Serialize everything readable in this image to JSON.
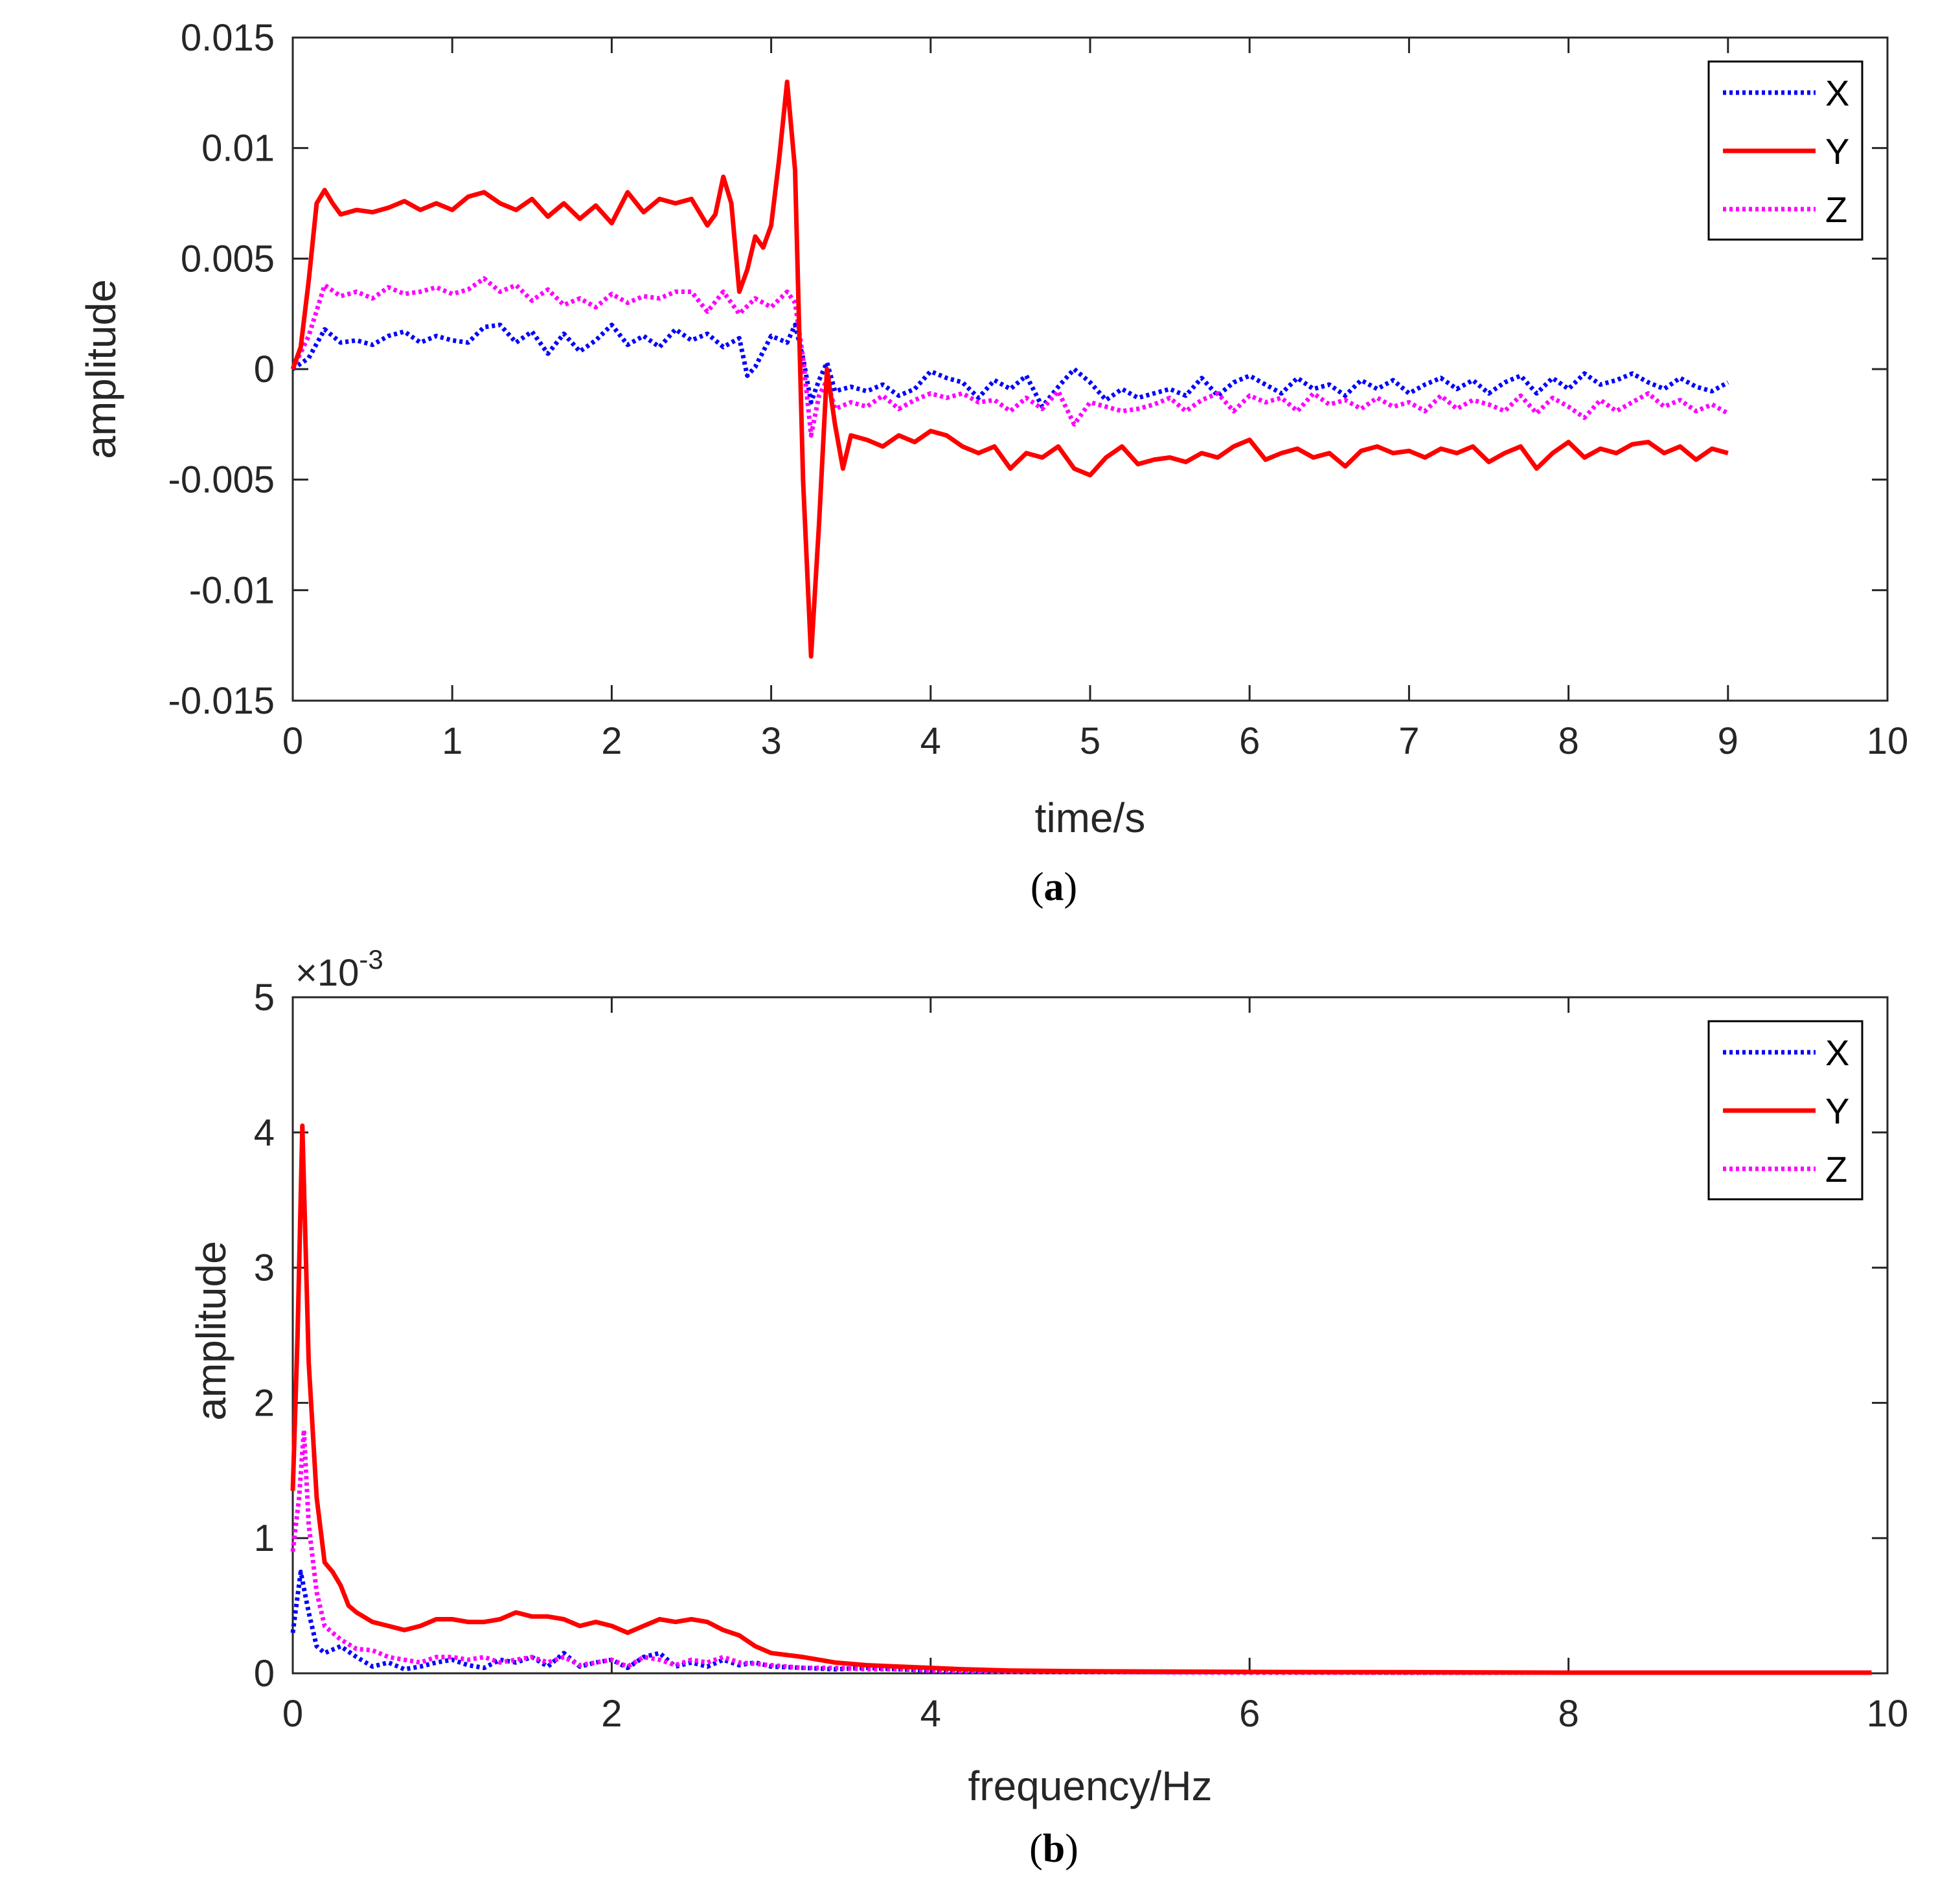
{
  "colors": {
    "X": "#0000ff",
    "Y": "#ff0000",
    "Z": "#ff00ff",
    "axis": "#262626"
  },
  "chart_data": [
    {
      "id": "a",
      "type": "line",
      "caption_letter": "a",
      "xlabel": "time/s",
      "ylabel": "amplitude",
      "xlim": [
        0,
        10
      ],
      "ylim": [
        -0.015,
        0.015
      ],
      "xticks": [
        0,
        1,
        2,
        3,
        4,
        5,
        6,
        7,
        8,
        9,
        10
      ],
      "xtick_labels": [
        "0",
        "1",
        "2",
        "3",
        "4",
        "5",
        "6",
        "7",
        "8",
        "9",
        "10"
      ],
      "yticks": [
        -0.015,
        -0.01,
        -0.005,
        0,
        0.005,
        0.01,
        0.015
      ],
      "ytick_labels": [
        "-0.015",
        "-0.01",
        "-0.005",
        "0",
        "0.005",
        "0.01",
        "0.015"
      ],
      "legend": [
        "X",
        "Y",
        "Z"
      ],
      "legend_position": "top-right",
      "series": [
        {
          "name": "X",
          "style": "dotted",
          "color": "#0000ff",
          "x": [
            0,
            0.1,
            0.2,
            0.3,
            0.4,
            0.5,
            0.6,
            0.7,
            0.8,
            0.9,
            1.0,
            1.1,
            1.2,
            1.3,
            1.4,
            1.5,
            1.6,
            1.7,
            1.8,
            1.9,
            2.0,
            2.1,
            2.2,
            2.3,
            2.4,
            2.5,
            2.6,
            2.7,
            2.8,
            2.85,
            2.9,
            3.0,
            3.1,
            3.15,
            3.2,
            3.25,
            3.3,
            3.35,
            3.4,
            3.5,
            3.6,
            3.7,
            3.8,
            3.9,
            4.0,
            4.1,
            4.2,
            4.3,
            4.4,
            4.5,
            4.6,
            4.7,
            4.8,
            4.9,
            5.0,
            5.1,
            5.2,
            5.3,
            5.4,
            5.5,
            5.6,
            5.7,
            5.8,
            5.9,
            6.0,
            6.1,
            6.2,
            6.3,
            6.4,
            6.5,
            6.6,
            6.7,
            6.8,
            6.9,
            7.0,
            7.1,
            7.2,
            7.3,
            7.4,
            7.5,
            7.6,
            7.7,
            7.8,
            7.9,
            8.0,
            8.1,
            8.2,
            8.3,
            8.4,
            8.5,
            8.6,
            8.7,
            8.8,
            8.9,
            9.0
          ],
          "y": [
            0,
            0.0005,
            0.0018,
            0.0012,
            0.0013,
            0.0011,
            0.0015,
            0.0017,
            0.0012,
            0.0015,
            0.0013,
            0.0012,
            0.0019,
            0.002,
            0.0012,
            0.0017,
            0.0007,
            0.0016,
            0.0008,
            0.0013,
            0.002,
            0.0011,
            0.0015,
            0.001,
            0.0018,
            0.0013,
            0.0016,
            0.001,
            0.0014,
            -0.0003,
            0.0001,
            0.0015,
            0.0012,
            0.002,
            0.0005,
            -0.0015,
            -0.0005,
            0.0003,
            -0.001,
            -0.0008,
            -0.001,
            -0.0007,
            -0.0012,
            -0.0009,
            -0.0001,
            -0.0004,
            -0.0006,
            -0.0013,
            -0.0005,
            -0.0009,
            -0.0003,
            -0.0017,
            -0.0008,
            0,
            -0.0006,
            -0.0014,
            -0.0009,
            -0.0013,
            -0.0011,
            -0.0009,
            -0.0012,
            -0.0004,
            -0.0012,
            -0.0006,
            -0.0003,
            -0.0007,
            -0.0011,
            -0.0004,
            -0.0009,
            -0.0007,
            -0.0012,
            -0.0005,
            -0.0009,
            -0.0005,
            -0.0011,
            -0.0007,
            -0.0004,
            -0.0009,
            -0.0005,
            -0.0011,
            -0.0006,
            -0.0003,
            -0.0011,
            -0.0004,
            -0.0009,
            -0.0002,
            -0.0007,
            -0.0005,
            -0.0002,
            -0.0006,
            -0.0009,
            -0.0004,
            -0.0008,
            -0.001,
            -0.0006
          ]
        },
        {
          "name": "Y",
          "style": "solid",
          "color": "#ff0000",
          "x": [
            0,
            0.05,
            0.1,
            0.15,
            0.2,
            0.25,
            0.3,
            0.4,
            0.5,
            0.6,
            0.7,
            0.8,
            0.9,
            1.0,
            1.1,
            1.2,
            1.3,
            1.4,
            1.5,
            1.6,
            1.7,
            1.8,
            1.9,
            2.0,
            2.1,
            2.2,
            2.3,
            2.4,
            2.5,
            2.6,
            2.65,
            2.7,
            2.75,
            2.8,
            2.85,
            2.9,
            2.95,
            3.0,
            3.05,
            3.1,
            3.15,
            3.2,
            3.25,
            3.3,
            3.35,
            3.4,
            3.45,
            3.5,
            3.6,
            3.7,
            3.8,
            3.9,
            4.0,
            4.1,
            4.2,
            4.3,
            4.4,
            4.5,
            4.6,
            4.7,
            4.8,
            4.9,
            5.0,
            5.1,
            5.2,
            5.3,
            5.4,
            5.5,
            5.6,
            5.7,
            5.8,
            5.9,
            6.0,
            6.1,
            6.2,
            6.3,
            6.4,
            6.5,
            6.6,
            6.7,
            6.8,
            6.9,
            7.0,
            7.1,
            7.2,
            7.3,
            7.4,
            7.5,
            7.6,
            7.7,
            7.8,
            7.9,
            8.0,
            8.1,
            8.2,
            8.3,
            8.4,
            8.5,
            8.6,
            8.7,
            8.8,
            8.9,
            9.0
          ],
          "y": [
            0,
            0.001,
            0.004,
            0.0075,
            0.0081,
            0.0075,
            0.007,
            0.0072,
            0.0071,
            0.0073,
            0.0076,
            0.0072,
            0.0075,
            0.0072,
            0.0078,
            0.008,
            0.0075,
            0.0072,
            0.0077,
            0.0069,
            0.0075,
            0.0068,
            0.0074,
            0.0066,
            0.008,
            0.0071,
            0.0077,
            0.0075,
            0.0077,
            0.0065,
            0.007,
            0.0087,
            0.0075,
            0.0035,
            0.0045,
            0.006,
            0.0055,
            0.0065,
            0.0095,
            0.013,
            0.009,
            -0.005,
            -0.013,
            -0.007,
            0,
            -0.0025,
            -0.0045,
            -0.003,
            -0.0032,
            -0.0035,
            -0.003,
            -0.0033,
            -0.0028,
            -0.003,
            -0.0035,
            -0.0038,
            -0.0035,
            -0.0045,
            -0.0038,
            -0.004,
            -0.0035,
            -0.0045,
            -0.0048,
            -0.004,
            -0.0035,
            -0.0043,
            -0.0041,
            -0.004,
            -0.0042,
            -0.0038,
            -0.004,
            -0.0035,
            -0.0032,
            -0.0041,
            -0.0038,
            -0.0036,
            -0.004,
            -0.0038,
            -0.0044,
            -0.0037,
            -0.0035,
            -0.0038,
            -0.0037,
            -0.004,
            -0.0036,
            -0.0038,
            -0.0035,
            -0.0042,
            -0.0038,
            -0.0035,
            -0.0045,
            -0.0038,
            -0.0033,
            -0.004,
            -0.0036,
            -0.0038,
            -0.0034,
            -0.0033,
            -0.0038,
            -0.0035,
            -0.0041,
            -0.0036,
            -0.0038
          ]
        },
        {
          "name": "Z",
          "style": "dotted",
          "color": "#ff00ff",
          "x": [
            0,
            0.1,
            0.2,
            0.3,
            0.4,
            0.5,
            0.6,
            0.7,
            0.8,
            0.9,
            1.0,
            1.1,
            1.2,
            1.3,
            1.4,
            1.5,
            1.6,
            1.7,
            1.8,
            1.9,
            2.0,
            2.1,
            2.2,
            2.3,
            2.4,
            2.5,
            2.6,
            2.7,
            2.8,
            2.9,
            3.0,
            3.1,
            3.15,
            3.2,
            3.25,
            3.3,
            3.35,
            3.4,
            3.5,
            3.6,
            3.7,
            3.8,
            3.9,
            4.0,
            4.1,
            4.2,
            4.3,
            4.4,
            4.5,
            4.6,
            4.7,
            4.8,
            4.9,
            5.0,
            5.1,
            5.2,
            5.3,
            5.4,
            5.5,
            5.6,
            5.7,
            5.8,
            5.9,
            6.0,
            6.1,
            6.2,
            6.3,
            6.4,
            6.5,
            6.6,
            6.7,
            6.8,
            6.9,
            7.0,
            7.1,
            7.2,
            7.3,
            7.4,
            7.5,
            7.6,
            7.7,
            7.8,
            7.9,
            8.0,
            8.1,
            8.2,
            8.3,
            8.4,
            8.5,
            8.6,
            8.7,
            8.8,
            8.9,
            9.0
          ],
          "y": [
            0,
            0.0015,
            0.0038,
            0.0033,
            0.0035,
            0.0032,
            0.0037,
            0.0034,
            0.0035,
            0.0037,
            0.0034,
            0.0036,
            0.0041,
            0.0035,
            0.0038,
            0.0031,
            0.0036,
            0.0029,
            0.0032,
            0.0028,
            0.0034,
            0.003,
            0.0033,
            0.0032,
            0.0035,
            0.0035,
            0.0026,
            0.0035,
            0.0025,
            0.0032,
            0.0028,
            0.0035,
            0.003,
            0.0005,
            -0.003,
            -0.0012,
            -0.0005,
            -0.0018,
            -0.0015,
            -0.0017,
            -0.0012,
            -0.0018,
            -0.0014,
            -0.0011,
            -0.0013,
            -0.0011,
            -0.0015,
            -0.0014,
            -0.0019,
            -0.0013,
            -0.0018,
            -0.001,
            -0.0025,
            -0.0015,
            -0.0017,
            -0.0019,
            -0.0018,
            -0.0016,
            -0.0013,
            -0.0019,
            -0.0014,
            -0.0011,
            -0.0019,
            -0.0012,
            -0.0015,
            -0.0013,
            -0.0019,
            -0.0011,
            -0.0016,
            -0.0014,
            -0.0018,
            -0.0013,
            -0.0017,
            -0.0015,
            -0.0019,
            -0.0012,
            -0.0018,
            -0.0014,
            -0.0016,
            -0.0019,
            -0.0012,
            -0.002,
            -0.0013,
            -0.0017,
            -0.0022,
            -0.0014,
            -0.0019,
            -0.0015,
            -0.0011,
            -0.0017,
            -0.0014,
            -0.0019,
            -0.0016,
            -0.002
          ]
        }
      ]
    },
    {
      "id": "b",
      "type": "line",
      "caption_letter": "b",
      "xlabel": "frequency/Hz",
      "ylabel": "amplitude",
      "exponent_label": "×10",
      "exponent_power": "-3",
      "xlim": [
        0,
        10
      ],
      "ylim": [
        0,
        5
      ],
      "xticks": [
        0,
        2,
        4,
        6,
        8,
        10
      ],
      "xtick_labels": [
        "0",
        "2",
        "4",
        "6",
        "8",
        "10"
      ],
      "yticks": [
        0,
        1,
        2,
        3,
        4,
        5
      ],
      "ytick_labels": [
        "0",
        "1",
        "2",
        "3",
        "4",
        "5"
      ],
      "legend": [
        "X",
        "Y",
        "Z"
      ],
      "legend_position": "top-right",
      "series": [
        {
          "name": "X",
          "style": "dotted",
          "color": "#0000ff",
          "x": [
            0,
            0.05,
            0.1,
            0.15,
            0.2,
            0.3,
            0.4,
            0.5,
            0.6,
            0.7,
            0.8,
            0.9,
            1.0,
            1.1,
            1.2,
            1.3,
            1.4,
            1.5,
            1.6,
            1.7,
            1.8,
            1.9,
            2.0,
            2.1,
            2.2,
            2.3,
            2.4,
            2.5,
            2.6,
            2.7,
            2.8,
            2.9,
            3.0,
            3.2,
            3.4,
            3.6,
            3.8,
            4.0,
            4.5,
            5.0,
            6.0,
            7.0,
            8.0,
            9.0,
            9.9
          ],
          "y": [
            0.3,
            0.75,
            0.45,
            0.2,
            0.15,
            0.2,
            0.12,
            0.05,
            0.08,
            0.03,
            0.05,
            0.08,
            0.1,
            0.06,
            0.04,
            0.1,
            0.08,
            0.12,
            0.05,
            0.15,
            0.05,
            0.08,
            0.1,
            0.04,
            0.12,
            0.15,
            0.05,
            0.08,
            0.05,
            0.1,
            0.06,
            0.08,
            0.05,
            0.04,
            0.03,
            0.04,
            0.03,
            0.02,
            0.01,
            0.01,
            0.01,
            0.005,
            0.005,
            0.005,
            0.005
          ]
        },
        {
          "name": "Y",
          "style": "solid",
          "color": "#ff0000",
          "x": [
            0,
            0.03,
            0.06,
            0.1,
            0.15,
            0.2,
            0.25,
            0.3,
            0.35,
            0.4,
            0.5,
            0.6,
            0.7,
            0.8,
            0.9,
            1.0,
            1.1,
            1.2,
            1.3,
            1.4,
            1.5,
            1.6,
            1.7,
            1.8,
            1.9,
            2.0,
            2.1,
            2.2,
            2.3,
            2.4,
            2.5,
            2.6,
            2.7,
            2.8,
            2.9,
            3.0,
            3.2,
            3.4,
            3.6,
            3.8,
            4.0,
            4.2,
            4.5,
            5.0,
            6.0,
            7.0,
            8.0,
            9.0,
            9.9
          ],
          "y": [
            1.35,
            2.5,
            4.05,
            2.3,
            1.3,
            0.82,
            0.75,
            0.65,
            0.5,
            0.45,
            0.38,
            0.35,
            0.32,
            0.35,
            0.4,
            0.4,
            0.38,
            0.38,
            0.4,
            0.45,
            0.42,
            0.42,
            0.4,
            0.35,
            0.38,
            0.35,
            0.3,
            0.35,
            0.4,
            0.38,
            0.4,
            0.38,
            0.32,
            0.28,
            0.2,
            0.15,
            0.12,
            0.08,
            0.06,
            0.05,
            0.04,
            0.03,
            0.02,
            0.015,
            0.01,
            0.008,
            0.005,
            0.005,
            0.005
          ]
        },
        {
          "name": "Z",
          "style": "dotted",
          "color": "#ff00ff",
          "x": [
            0,
            0.04,
            0.07,
            0.1,
            0.15,
            0.2,
            0.25,
            0.3,
            0.4,
            0.5,
            0.6,
            0.7,
            0.8,
            0.9,
            1.0,
            1.1,
            1.2,
            1.3,
            1.4,
            1.5,
            1.6,
            1.7,
            1.8,
            1.9,
            2.0,
            2.1,
            2.2,
            2.3,
            2.4,
            2.5,
            2.6,
            2.7,
            2.8,
            3.0,
            3.2,
            3.4,
            3.6,
            3.8,
            4.0,
            4.5,
            5.0,
            6.0,
            7.0,
            8.0,
            9.0,
            9.9
          ],
          "y": [
            0.9,
            1.3,
            1.8,
            1.1,
            0.6,
            0.35,
            0.3,
            0.25,
            0.18,
            0.17,
            0.12,
            0.1,
            0.08,
            0.12,
            0.12,
            0.1,
            0.12,
            0.08,
            0.1,
            0.12,
            0.08,
            0.12,
            0.06,
            0.08,
            0.1,
            0.05,
            0.12,
            0.1,
            0.06,
            0.1,
            0.08,
            0.12,
            0.08,
            0.06,
            0.04,
            0.04,
            0.03,
            0.03,
            0.02,
            0.01,
            0.01,
            0.005,
            0.005,
            0.005,
            0.005,
            0.005
          ]
        }
      ]
    }
  ]
}
